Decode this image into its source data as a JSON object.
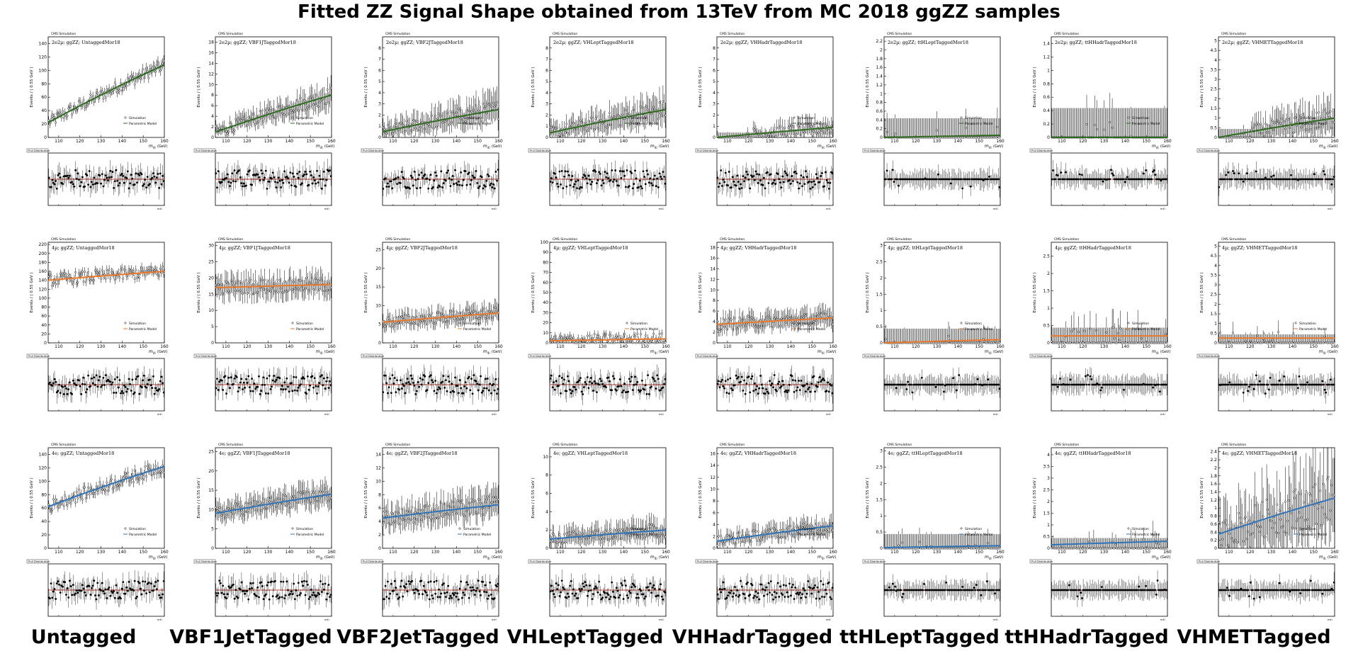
{
  "title": "Fitted ZZ Signal Shape obtained from 13TeV from MC 2018 ggZZ samples",
  "columns": [
    "Untagged",
    "VBF1JetTagged",
    "VBF2JetTagged",
    "VHLeptTagged",
    "VHHadrTagged",
    "ttHLeptTagged",
    "ttHHadrTagged",
    "VHMETTagged"
  ],
  "cms_label": "CMS Simulation",
  "y_axis_label": "Events / ( 0.55 GeV )",
  "x_axis_label": "m4l (GeV)",
  "pull_label": "Pull Distribution",
  "legend": [
    "Simulation",
    "Parametric Model"
  ],
  "colors": {
    "2e2mu": "#2e6b1e",
    "4mu": "#e8782a",
    "4e": "#2f73b8",
    "pull_line": "#c0392b",
    "points": "#000000"
  },
  "chart_data": [
    {
      "type": "scatter",
      "row": 0,
      "channel": "2e2mu",
      "xlim": [
        105,
        160
      ],
      "panels": [
        {
          "category": "UntaggedMor18",
          "label": "2e2µ; ggZZ; UntaggedMor18",
          "ylim": [
            0,
            150
          ],
          "yticks": [
            0,
            20,
            40,
            60,
            80,
            100,
            120,
            140
          ],
          "model": [
            22,
            108
          ]
        },
        {
          "category": "VBF1JTaggedMor18",
          "label": "2e2µ; ggZZ; VBF1JTaggedMor18",
          "ylim": [
            0,
            19
          ],
          "yticks": [
            0,
            2,
            4,
            6,
            8,
            10,
            12,
            14,
            16,
            18
          ],
          "model": [
            1.0,
            8.0
          ]
        },
        {
          "category": "VBF2JTaggedMor18",
          "label": "2e2µ; ggZZ; VBF2JTaggedMor18",
          "ylim": [
            0,
            9
          ],
          "yticks": [
            0,
            1,
            2,
            3,
            4,
            5,
            6,
            7,
            8
          ],
          "model": [
            0.5,
            2.5
          ]
        },
        {
          "category": "VHLeptTaggedMor18",
          "label": "2e2µ; ggZZ; VHLeptTaggedMor18",
          "ylim": [
            0,
            9
          ],
          "yticks": [
            0,
            1,
            2,
            3,
            4,
            5,
            6,
            7,
            8
          ],
          "model": [
            0.4,
            2.5
          ]
        },
        {
          "category": "VHHadrTaggedMor18",
          "label": "2e2µ; ggZZ; VHHadrTaggedMor18",
          "ylim": [
            0,
            9
          ],
          "yticks": [
            0,
            1,
            2,
            3,
            4,
            5,
            6,
            7,
            8
          ],
          "model": [
            0.0,
            0.9
          ]
        },
        {
          "category": "ttHLeptTaggedMor18",
          "label": "2e2µ; ggZZ; ttHLeptTaggedMor18",
          "ylim": [
            0,
            2.3
          ],
          "yticks": [
            0,
            0.2,
            0.4,
            0.6,
            0.8,
            1,
            1.2,
            1.4,
            1.6,
            1.8,
            2,
            2.2
          ],
          "model": [
            0.0,
            0.05
          ]
        },
        {
          "category": "ttHHadrTaggedMor18",
          "label": "2e2µ; ggZZ; ttHHadrTaggedMor18",
          "ylim": [
            0,
            1.5
          ],
          "yticks": [
            0,
            0.2,
            0.4,
            0.6,
            0.8,
            1,
            1.2,
            1.4
          ],
          "model": [
            0.0,
            0.0
          ]
        },
        {
          "category": "VHMETTaggedMor18",
          "label": "2e2µ; ggZZ; VHMETTaggedMor18",
          "ylim": [
            0,
            5.2
          ],
          "yticks": [
            0,
            0.5,
            1,
            1.5,
            2,
            2.5,
            3,
            3.5,
            4,
            4.5,
            5
          ],
          "model": [
            0.0,
            1.0
          ]
        }
      ]
    },
    {
      "type": "scatter",
      "row": 1,
      "channel": "4mu",
      "xlim": [
        105,
        160
      ],
      "panels": [
        {
          "category": "UntaggedMor18",
          "label": "4µ; ggZZ; UntaggedMor18",
          "ylim": [
            0,
            225
          ],
          "yticks": [
            0,
            20,
            40,
            60,
            80,
            100,
            120,
            140,
            160,
            180,
            200,
            220
          ],
          "model": [
            140,
            160
          ]
        },
        {
          "category": "VBF1JTaggedMor18",
          "label": "4µ; ggZZ; VBF1JTaggedMor18",
          "ylim": [
            0,
            31
          ],
          "yticks": [
            0,
            5,
            10,
            15,
            20,
            25,
            30
          ],
          "model": [
            17,
            18
          ]
        },
        {
          "category": "VBF2JTaggedMor18",
          "label": "4µ; ggZZ; VBF2JTaggedMor18",
          "ylim": [
            0,
            27
          ],
          "yticks": [
            0,
            5,
            10,
            15,
            20,
            25
          ],
          "model": [
            5.5,
            8
          ]
        },
        {
          "category": "VHLeptTaggedMor18",
          "label": "4µ; ggZZ; VHLeptTaggedMor18",
          "ylim": [
            0,
            100
          ],
          "yticks": [
            0,
            10,
            20,
            30,
            40,
            50,
            60,
            70,
            80,
            90,
            100
          ],
          "model": [
            2,
            4
          ]
        },
        {
          "category": "VHHadrTaggedMor18",
          "label": "4µ; ggZZ; VHHadrTaggedMor18",
          "ylim": [
            0,
            19
          ],
          "yticks": [
            0,
            2,
            4,
            6,
            8,
            10,
            12,
            14,
            16,
            18
          ],
          "model": [
            3.5,
            4.7
          ]
        },
        {
          "category": "ttHLeptTaggedMor18",
          "label": "4µ; ggZZ; ttHLeptTaggedMor18",
          "ylim": [
            0,
            3.1
          ],
          "yticks": [
            0,
            0.5,
            1,
            1.5,
            2,
            2.5,
            3
          ],
          "model": [
            0.0,
            0.1
          ]
        },
        {
          "category": "ttHHadrTaggedMor18",
          "label": "4µ; ggZZ; ttHHadrTaggedMor18",
          "ylim": [
            0,
            2.9
          ],
          "yticks": [
            0,
            0.5,
            1,
            1.5,
            2,
            2.5
          ],
          "model": [
            0.2,
            0.2
          ]
        },
        {
          "category": "VHMETTaggedMor18",
          "label": "4µ; ggZZ; VHMETTaggedMor18",
          "ylim": [
            0,
            5.2
          ],
          "yticks": [
            0,
            0.5,
            1,
            1.5,
            2,
            2.5,
            3,
            3.5,
            4,
            4.5,
            5
          ],
          "model": [
            0.25,
            0.25
          ]
        }
      ]
    },
    {
      "type": "scatter",
      "row": 2,
      "channel": "4e",
      "xlim": [
        105,
        160
      ],
      "panels": [
        {
          "category": "UntaggedMor18",
          "label": "4e; ggZZ; UntaggedMor18",
          "ylim": [
            0,
            150
          ],
          "yticks": [
            0,
            20,
            40,
            60,
            80,
            100,
            120,
            140
          ],
          "model": [
            62,
            122
          ]
        },
        {
          "category": "VBF1JTaggedMor18",
          "label": "4e; ggZZ; VBF1JTaggedMor18",
          "ylim": [
            0,
            26
          ],
          "yticks": [
            0,
            5,
            10,
            15,
            20,
            25
          ],
          "model": [
            9,
            14
          ]
        },
        {
          "category": "VBF2JTaggedMor18",
          "label": "4e; ggZZ; VBF2JTaggedMor18",
          "ylim": [
            0,
            15
          ],
          "yticks": [
            0,
            2,
            4,
            6,
            8,
            10,
            12,
            14
          ],
          "model": [
            4.5,
            6.5
          ]
        },
        {
          "category": "VHLeptTaggedMor18",
          "label": "4e; ggZZ; VHLeptTaggedMor18",
          "ylim": [
            0,
            11
          ],
          "yticks": [
            0,
            2,
            4,
            6,
            8,
            10
          ],
          "model": [
            1.0,
            2.0
          ]
        },
        {
          "category": "VHHadrTaggedMor18",
          "label": "4e; ggZZ; VHHadrTaggedMor18",
          "ylim": [
            0,
            17
          ],
          "yticks": [
            0,
            2,
            4,
            6,
            8,
            10,
            12,
            14,
            16
          ],
          "model": [
            1.2,
            3.8
          ]
        },
        {
          "category": "ttHLeptTaggedMor18",
          "label": "4e; ggZZ; ttHLeptTaggedMor18",
          "ylim": [
            0,
            3.1
          ],
          "yticks": [
            0,
            0.5,
            1,
            1.5,
            2,
            2.5,
            3
          ],
          "model": [
            0.02,
            0.08
          ]
        },
        {
          "category": "ttHHadrTaggedMor18",
          "label": "4e; ggZZ; ttHHadrTaggedMor18",
          "ylim": [
            0,
            4.3
          ],
          "yticks": [
            0,
            0.5,
            1,
            1.5,
            2,
            2.5,
            3,
            3.5,
            4
          ],
          "model": [
            0.15,
            0.3
          ]
        },
        {
          "category": "VHMETTaggedMor18",
          "label": "4e; ggZZ; VHMETTaggedMor18",
          "ylim": [
            0,
            2.5
          ],
          "yticks": [
            0,
            0.2,
            0.4,
            0.6,
            0.8,
            1,
            1.2,
            1.4,
            1.6,
            1.8,
            2,
            2.2,
            2.4
          ],
          "model": [
            0.35,
            1.25
          ]
        }
      ]
    }
  ]
}
